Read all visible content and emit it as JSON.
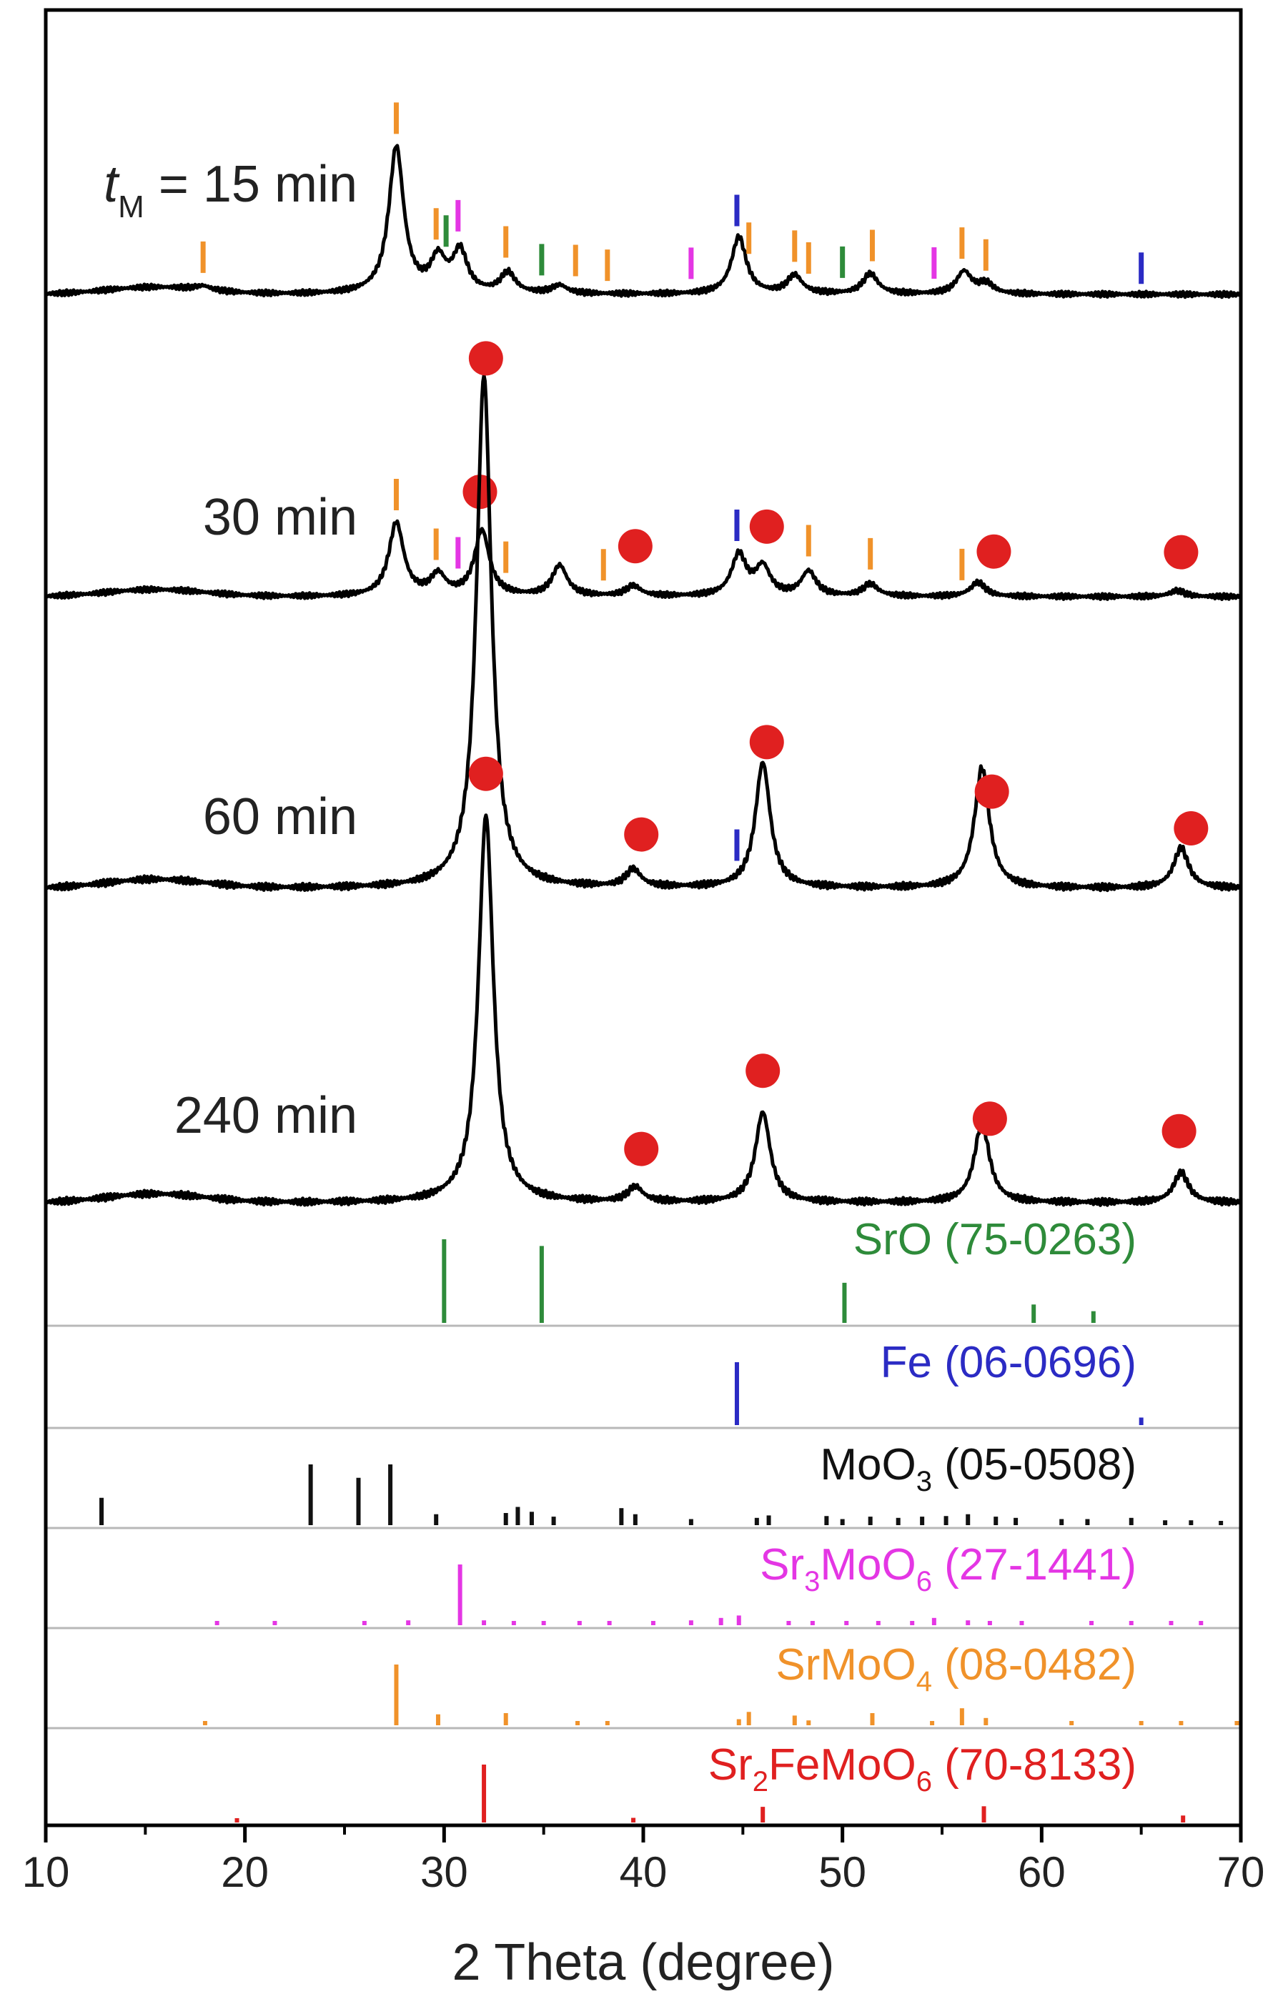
{
  "colors": {
    "axis": "#000000",
    "pattern": "#000000",
    "SrO": "#2e8b3a",
    "Fe": "#2b2bc4",
    "MoO3": "#111111",
    "Sr3MoO6": "#e436e4",
    "SrMoO4": "#f0922a",
    "Sr2FeMoO6": "#e02020",
    "divider": "#b8b8b8"
  },
  "chart_data": {
    "type": "line",
    "xlabel": "2 Theta (degree)",
    "ylabel": "",
    "xlim": [
      10,
      70
    ],
    "xticks": [
      10,
      20,
      30,
      40,
      50,
      60,
      70
    ],
    "grid": false,
    "samples": [
      {
        "label_prefix": "t",
        "label_sub": "M",
        "label_rest": " = 15 min",
        "peaks": [
          {
            "x": 17.9,
            "h": 0.02
          },
          {
            "x": 27.6,
            "h": 0.72
          },
          {
            "x": 29.7,
            "h": 0.16
          },
          {
            "x": 30.8,
            "h": 0.2
          },
          {
            "x": 33.2,
            "h": 0.1
          },
          {
            "x": 35.8,
            "h": 0.04
          },
          {
            "x": 44.8,
            "h": 0.28
          },
          {
            "x": 47.6,
            "h": 0.09
          },
          {
            "x": 51.4,
            "h": 0.1
          },
          {
            "x": 56.1,
            "h": 0.11
          },
          {
            "x": 57.2,
            "h": 0.05
          }
        ],
        "sticks": [
          {
            "phase": "SrMoO4",
            "x": 17.9
          },
          {
            "phase": "SrMoO4",
            "x": 27.6
          },
          {
            "phase": "SrMoO4",
            "x": 29.6
          },
          {
            "phase": "Sr3MoO6",
            "x": 30.7
          },
          {
            "phase": "SrO",
            "x": 30.1
          },
          {
            "phase": "SrMoO4",
            "x": 33.1
          },
          {
            "phase": "SrO",
            "x": 34.9
          },
          {
            "phase": "SrMoO4",
            "x": 36.6
          },
          {
            "phase": "SrMoO4",
            "x": 38.2
          },
          {
            "phase": "Sr3MoO6",
            "x": 42.4
          },
          {
            "phase": "Fe",
            "x": 44.7
          },
          {
            "phase": "SrMoO4",
            "x": 45.3
          },
          {
            "phase": "SrMoO4",
            "x": 47.6
          },
          {
            "phase": "SrMoO4",
            "x": 48.3
          },
          {
            "phase": "SrO",
            "x": 50.0
          },
          {
            "phase": "SrMoO4",
            "x": 51.5
          },
          {
            "phase": "Sr3MoO6",
            "x": 54.6
          },
          {
            "phase": "SrMoO4",
            "x": 56.0
          },
          {
            "phase": "SrMoO4",
            "x": 57.2
          },
          {
            "phase": "Fe",
            "x": 65.0
          }
        ],
        "dots": []
      },
      {
        "label_prefix": "",
        "label_sub": "",
        "label_rest": "30 min",
        "peaks": [
          {
            "x": 27.6,
            "h": 0.36
          },
          {
            "x": 29.7,
            "h": 0.1
          },
          {
            "x": 31.9,
            "h": 0.32
          },
          {
            "x": 35.8,
            "h": 0.15
          },
          {
            "x": 39.5,
            "h": 0.05
          },
          {
            "x": 44.8,
            "h": 0.2
          },
          {
            "x": 46.0,
            "h": 0.14
          },
          {
            "x": 48.3,
            "h": 0.12
          },
          {
            "x": 51.4,
            "h": 0.06
          },
          {
            "x": 56.8,
            "h": 0.07
          },
          {
            "x": 66.8,
            "h": 0.03
          }
        ],
        "sticks": [
          {
            "phase": "SrMoO4",
            "x": 27.6
          },
          {
            "phase": "SrMoO4",
            "x": 29.6
          },
          {
            "phase": "Sr3MoO6",
            "x": 30.7
          },
          {
            "phase": "SrMoO4",
            "x": 33.1
          },
          {
            "phase": "SrMoO4",
            "x": 38.0
          },
          {
            "phase": "Fe",
            "x": 44.7
          },
          {
            "phase": "SrMoO4",
            "x": 48.3
          },
          {
            "phase": "SrMoO4",
            "x": 51.4
          },
          {
            "phase": "SrMoO4",
            "x": 56.0
          }
        ],
        "dots": [
          31.8,
          39.6,
          46.2,
          57.6,
          67.0
        ]
      },
      {
        "label_prefix": "",
        "label_sub": "",
        "label_rest": "60 min",
        "peaks": [
          {
            "x": 32.0,
            "h": 2.05
          },
          {
            "x": 39.5,
            "h": 0.07
          },
          {
            "x": 46.0,
            "h": 0.5
          },
          {
            "x": 57.0,
            "h": 0.48
          },
          {
            "x": 67.0,
            "h": 0.16
          }
        ],
        "sticks": [
          {
            "phase": "Fe",
            "x": 44.7
          }
        ],
        "dots": [
          32.1,
          39.9,
          46.2,
          57.5,
          67.5
        ]
      },
      {
        "label_prefix": "",
        "label_sub": "",
        "label_rest": "240 min",
        "peaks": [
          {
            "x": 32.1,
            "h": 1.55
          },
          {
            "x": 39.6,
            "h": 0.06
          },
          {
            "x": 46.0,
            "h": 0.36
          },
          {
            "x": 57.0,
            "h": 0.32
          },
          {
            "x": 67.0,
            "h": 0.12
          }
        ],
        "sticks": [],
        "dots": [
          32.1,
          39.9,
          46.0,
          57.4,
          66.9
        ]
      }
    ],
    "references": [
      {
        "phase": "SrO",
        "label": "SrO (75-0263)",
        "lines": [
          {
            "x": 30.0,
            "i": 1.0
          },
          {
            "x": 34.9,
            "i": 0.92
          },
          {
            "x": 50.1,
            "i": 0.48
          },
          {
            "x": 59.6,
            "i": 0.22
          },
          {
            "x": 62.6,
            "i": 0.14
          }
        ]
      },
      {
        "phase": "Fe",
        "label": "Fe (06-0696)",
        "lines": [
          {
            "x": 44.7,
            "i": 1.0
          },
          {
            "x": 65.0,
            "i": 0.12
          }
        ]
      },
      {
        "phase": "MoO3",
        "label_main": "MoO",
        "label_sub": "3",
        "label_rest": " (05-0508)",
        "lines": [
          {
            "x": 12.8,
            "i": 0.45
          },
          {
            "x": 23.3,
            "i": 1.0
          },
          {
            "x": 25.7,
            "i": 0.78
          },
          {
            "x": 27.3,
            "i": 1.0
          },
          {
            "x": 29.6,
            "i": 0.18
          },
          {
            "x": 33.1,
            "i": 0.2
          },
          {
            "x": 33.7,
            "i": 0.3
          },
          {
            "x": 34.4,
            "i": 0.22
          },
          {
            "x": 35.5,
            "i": 0.14
          },
          {
            "x": 38.9,
            "i": 0.28
          },
          {
            "x": 39.6,
            "i": 0.18
          },
          {
            "x": 42.4,
            "i": 0.1
          },
          {
            "x": 45.7,
            "i": 0.12
          },
          {
            "x": 46.3,
            "i": 0.16
          },
          {
            "x": 49.2,
            "i": 0.15
          },
          {
            "x": 50.0,
            "i": 0.1
          },
          {
            "x": 51.4,
            "i": 0.14
          },
          {
            "x": 52.8,
            "i": 0.12
          },
          {
            "x": 54.0,
            "i": 0.14
          },
          {
            "x": 55.2,
            "i": 0.15
          },
          {
            "x": 56.3,
            "i": 0.18
          },
          {
            "x": 57.7,
            "i": 0.14
          },
          {
            "x": 58.7,
            "i": 0.12
          },
          {
            "x": 61.0,
            "i": 0.1
          },
          {
            "x": 62.3,
            "i": 0.1
          },
          {
            "x": 64.5,
            "i": 0.12
          },
          {
            "x": 66.2,
            "i": 0.08
          },
          {
            "x": 67.5,
            "i": 0.08
          },
          {
            "x": 69.0,
            "i": 0.07
          }
        ]
      },
      {
        "phase": "Sr3MoO6",
        "label_main": "Sr",
        "label_sub": "3",
        "label_mid": "MoO",
        "label_sub2": "6",
        "label_rest": " (27-1441)",
        "lines": [
          {
            "x": 18.6,
            "i": 0.05
          },
          {
            "x": 21.5,
            "i": 0.05
          },
          {
            "x": 26.0,
            "i": 0.05
          },
          {
            "x": 28.2,
            "i": 0.08
          },
          {
            "x": 30.8,
            "i": 1.0
          },
          {
            "x": 32.0,
            "i": 0.08
          },
          {
            "x": 33.5,
            "i": 0.06
          },
          {
            "x": 35.0,
            "i": 0.05
          },
          {
            "x": 36.8,
            "i": 0.06
          },
          {
            "x": 38.3,
            "i": 0.05
          },
          {
            "x": 40.5,
            "i": 0.06
          },
          {
            "x": 42.4,
            "i": 0.08
          },
          {
            "x": 43.9,
            "i": 0.12
          },
          {
            "x": 44.8,
            "i": 0.16
          },
          {
            "x": 47.3,
            "i": 0.06
          },
          {
            "x": 48.5,
            "i": 0.06
          },
          {
            "x": 50.2,
            "i": 0.06
          },
          {
            "x": 51.8,
            "i": 0.06
          },
          {
            "x": 53.5,
            "i": 0.06
          },
          {
            "x": 54.6,
            "i": 0.12
          },
          {
            "x": 56.3,
            "i": 0.08
          },
          {
            "x": 57.4,
            "i": 0.06
          },
          {
            "x": 59.0,
            "i": 0.06
          },
          {
            "x": 62.5,
            "i": 0.05
          },
          {
            "x": 64.5,
            "i": 0.05
          },
          {
            "x": 66.5,
            "i": 0.05
          },
          {
            "x": 68.0,
            "i": 0.05
          }
        ]
      },
      {
        "phase": "SrMoO4",
        "label_main": "SrMoO",
        "label_sub": "4",
        "label_rest": " (08-0482)",
        "lines": [
          {
            "x": 18.0,
            "i": 0.06
          },
          {
            "x": 27.6,
            "i": 1.0
          },
          {
            "x": 29.7,
            "i": 0.18
          },
          {
            "x": 33.1,
            "i": 0.2
          },
          {
            "x": 36.7,
            "i": 0.06
          },
          {
            "x": 38.2,
            "i": 0.06
          },
          {
            "x": 44.8,
            "i": 0.1
          },
          {
            "x": 45.3,
            "i": 0.22
          },
          {
            "x": 47.6,
            "i": 0.16
          },
          {
            "x": 48.3,
            "i": 0.08
          },
          {
            "x": 51.5,
            "i": 0.2
          },
          {
            "x": 54.5,
            "i": 0.06
          },
          {
            "x": 56.0,
            "i": 0.28
          },
          {
            "x": 57.2,
            "i": 0.12
          },
          {
            "x": 61.5,
            "i": 0.05
          },
          {
            "x": 65.0,
            "i": 0.05
          },
          {
            "x": 67.0,
            "i": 0.06
          },
          {
            "x": 69.8,
            "i": 0.06
          }
        ]
      },
      {
        "phase": "Sr2FeMoO6",
        "label_main": "Sr",
        "label_sub": "2",
        "label_mid": "FeMoO",
        "label_sub2": "6",
        "label_rest": " (70-8133)",
        "lines": [
          {
            "x": 19.6,
            "i": 0.05
          },
          {
            "x": 32.0,
            "i": 1.0
          },
          {
            "x": 39.5,
            "i": 0.08
          },
          {
            "x": 46.0,
            "i": 0.27
          },
          {
            "x": 57.1,
            "i": 0.28
          },
          {
            "x": 67.1,
            "i": 0.12
          }
        ]
      }
    ]
  }
}
